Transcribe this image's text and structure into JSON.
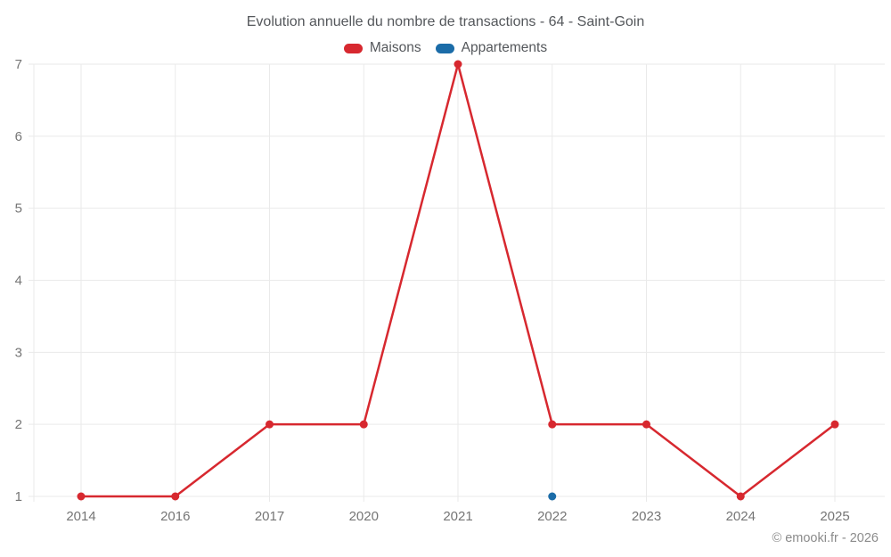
{
  "header": {
    "title": "Evolution annuelle du nombre de transactions - 64 - Saint-Goin"
  },
  "footer": {
    "credit": "© emooki.fr - 2026"
  },
  "colors": {
    "maisons": "#d7282f",
    "appartements": "#1b6ca8",
    "grid": "#eaeaea",
    "tick_text": "#757575",
    "title_text": "#54575b",
    "credit_text": "#8b8b8b"
  },
  "chart_data": {
    "type": "line",
    "title": "Evolution annuelle du nombre de transactions - 64 - Saint-Goin",
    "xlabel": "",
    "ylabel": "",
    "categories": [
      "2014",
      "2016",
      "2017",
      "2020",
      "2021",
      "2022",
      "2023",
      "2024",
      "2025"
    ],
    "series": [
      {
        "name": "Maisons",
        "color": "#d7282f",
        "values": [
          1,
          1,
          2,
          2,
          7,
          2,
          2,
          1,
          2
        ]
      },
      {
        "name": "Appartements",
        "color": "#1b6ca8",
        "values": [
          null,
          null,
          null,
          null,
          null,
          1,
          null,
          null,
          null
        ]
      }
    ],
    "ylim": [
      1,
      7
    ],
    "yticks": [
      1,
      2,
      3,
      4,
      5,
      6,
      7
    ],
    "grid": true,
    "legend_position": "top"
  }
}
